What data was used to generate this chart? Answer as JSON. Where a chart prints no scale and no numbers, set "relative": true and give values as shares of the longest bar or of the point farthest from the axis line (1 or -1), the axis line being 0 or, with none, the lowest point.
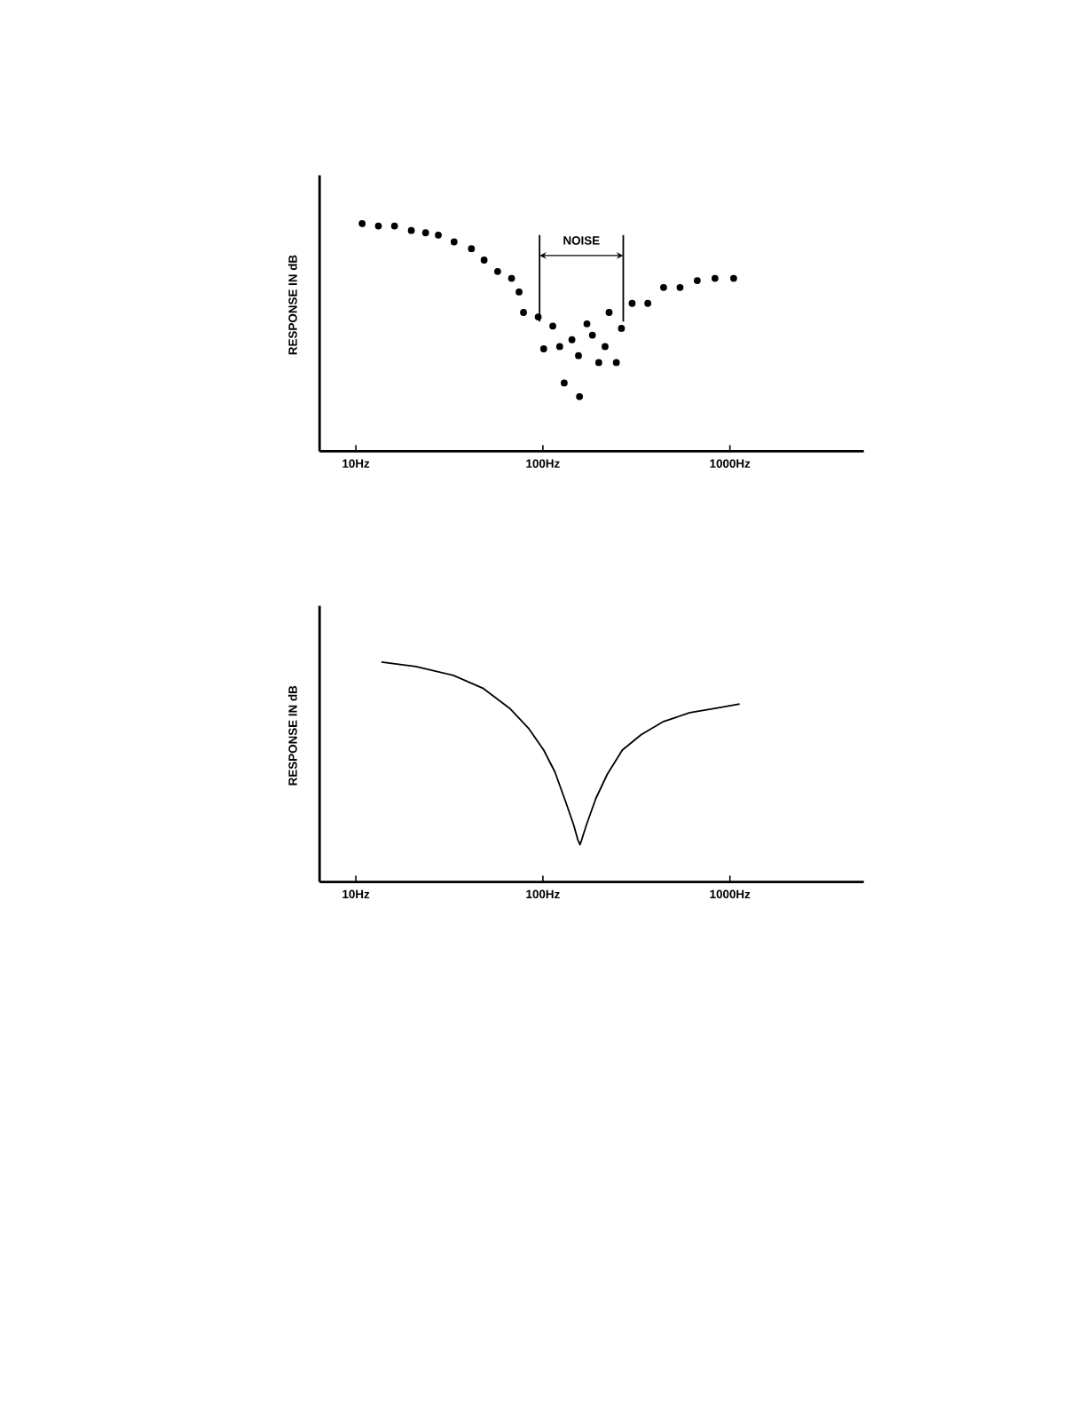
{
  "chart_data": [
    {
      "type": "scatter",
      "ylabel": "RESPONSE IN dB",
      "relative": true,
      "log": "x",
      "marker": "circle",
      "color": "#000000",
      "xlim": [
        6.4,
        5200
      ],
      "xticks": [
        {
          "value": 10,
          "label": "10Hz"
        },
        {
          "value": 100,
          "label": "100Hz"
        },
        {
          "value": 1000,
          "label": "1000Hz"
        }
      ],
      "x": [
        10.8,
        13.2,
        16.1,
        19.8,
        23.6,
        27.6,
        33.5,
        41.5,
        48.5,
        57.3,
        68.0,
        74.6,
        78.8,
        94.4,
        113,
        101,
        123,
        143,
        130,
        155,
        157,
        172,
        184,
        199,
        215,
        226,
        247,
        263,
        300,
        364,
        442,
        541,
        669,
        832,
        1047
      ],
      "values": [
        1.0,
        0.99,
        0.99,
        0.97,
        0.96,
        0.95,
        0.92,
        0.89,
        0.84,
        0.79,
        0.76,
        0.7,
        0.61,
        0.59,
        0.55,
        0.45,
        0.46,
        0.49,
        0.3,
        0.42,
        0.24,
        0.56,
        0.51,
        0.39,
        0.46,
        0.61,
        0.39,
        0.54,
        0.65,
        0.65,
        0.72,
        0.72,
        0.75,
        0.76,
        0.76
      ],
      "ref_lines": [
        {
          "axis": "x",
          "value": 96
        },
        {
          "axis": "x",
          "value": 269
        }
      ],
      "annotations": [
        "NOISE"
      ]
    },
    {
      "type": "line",
      "ylabel": "RESPONSE IN dB",
      "relative": true,
      "log": "x",
      "marker": "none",
      "line_style": "solid",
      "color": "#000000",
      "xlim": [
        6.4,
        5200
      ],
      "xticks": [
        {
          "value": 10,
          "label": "10Hz"
        },
        {
          "value": 100,
          "label": "100Hz"
        },
        {
          "value": 1000,
          "label": "1000Hz"
        }
      ],
      "x": [
        13.7,
        20.9,
        33.2,
        48.1,
        66.4,
        83.7,
        101,
        116,
        133,
        146,
        154,
        158,
        161,
        171,
        192,
        221,
        266,
        335,
        442,
        610,
        843,
        1127
      ],
      "values": [
        1.0,
        0.98,
        0.94,
        0.88,
        0.79,
        0.7,
        0.6,
        0.5,
        0.36,
        0.26,
        0.19,
        0.17,
        0.19,
        0.26,
        0.38,
        0.49,
        0.6,
        0.67,
        0.73,
        0.77,
        0.79,
        0.81
      ]
    }
  ]
}
